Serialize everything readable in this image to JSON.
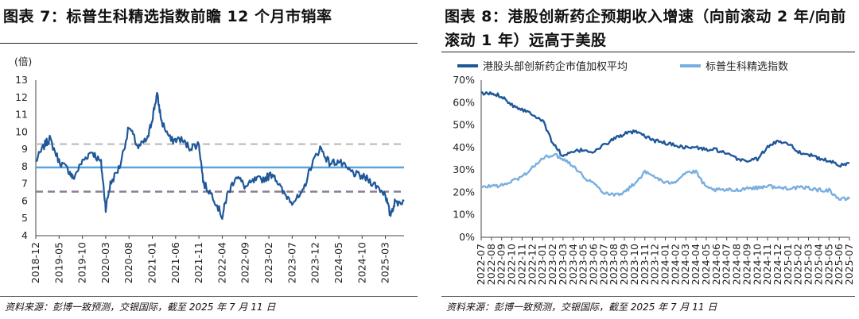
{
  "left": {
    "title": "图表 7：标普生科精选指数前瞻 12 个月市销率",
    "source": "资料来源：彭博一致预测，交银国际，截至 2025 年 7 月 11 日",
    "chart_data": {
      "type": "line",
      "ylabel": "(倍)",
      "ylim": [
        4,
        13
      ],
      "yticks": [
        "4",
        "5",
        "6",
        "7",
        "8",
        "9",
        "10",
        "11",
        "12",
        "13"
      ],
      "x_labels": [
        "2018-12",
        "2019-05",
        "2019-10",
        "2020-03",
        "2020-08",
        "2021-01",
        "2021-06",
        "2021-11",
        "2022-04",
        "2022-09",
        "2023-02",
        "2023-07",
        "2023-12",
        "2024-05",
        "2024-10",
        "2025-03"
      ],
      "series": [
        {
          "color": "#1f5799",
          "x": [
            "2018-12",
            "2019-02",
            "2019-03",
            "2019-05",
            "2019-07",
            "2019-08",
            "2019-10",
            "2019-12",
            "2020-02",
            "2020-03",
            "2020-04",
            "2020-06",
            "2020-08",
            "2020-10",
            "2020-12",
            "2021-01",
            "2021-02",
            "2021-03",
            "2021-05",
            "2021-07",
            "2021-09",
            "2021-11",
            "2021-12",
            "2022-02",
            "2022-04",
            "2022-05",
            "2022-07",
            "2022-09",
            "2022-11",
            "2023-01",
            "2023-03",
            "2023-05",
            "2023-07",
            "2023-09",
            "2023-11",
            "2024-01",
            "2024-03",
            "2024-05",
            "2024-07",
            "2024-09",
            "2024-11",
            "2025-01",
            "2025-03",
            "2025-04",
            "2025-05",
            "2025-07"
          ],
          "values": [
            8.3,
            9.3,
            9.6,
            8.3,
            7.8,
            7.3,
            8.3,
            8.9,
            8.2,
            5.6,
            7.0,
            8.0,
            10.3,
            9.1,
            9.6,
            10.8,
            12.2,
            10.6,
            9.5,
            9.6,
            9.1,
            9.3,
            7.0,
            6.3,
            5.1,
            6.3,
            7.5,
            6.8,
            7.2,
            7.3,
            7.6,
            6.5,
            6.0,
            6.3,
            8.0,
            9.1,
            8.2,
            8.3,
            7.8,
            7.5,
            7.3,
            6.9,
            6.4,
            5.2,
            5.9,
            6.0
          ]
        }
      ],
      "reference_lines": [
        {
          "name": "mean",
          "value": 7.95,
          "color": "#5ba3db",
          "style": "solid"
        },
        {
          "name": "+1sd",
          "value": 9.3,
          "color": "#c4c4c4",
          "style": "dashed"
        },
        {
          "name": "-1sd",
          "value": 6.55,
          "color": "#8c7b93",
          "style": "dashed"
        }
      ]
    }
  },
  "right": {
    "title": "图表 8：港股创新药企预期收入增速（向前滚动 2 年/向前滚动 1 年）远高于美股",
    "source": "资料来源：彭博一致预测，交银国际，截至 2025 年 7 月 11 日",
    "chart_data": {
      "type": "line",
      "ylim": [
        0,
        70
      ],
      "yticks": [
        "0%",
        "10%",
        "20%",
        "30%",
        "40%",
        "50%",
        "60%",
        "70%"
      ],
      "x_labels": [
        "2022-07",
        "2022-08",
        "2022-09",
        "2022-10",
        "2022-11",
        "2022-12",
        "2023-01",
        "2023-02",
        "2023-03",
        "2023-04",
        "2023-05",
        "2023-06",
        "2023-07",
        "2023-08",
        "2023-09",
        "2023-10",
        "2023-11",
        "2023-12",
        "2024-01",
        "2024-02",
        "2024-03",
        "2024-04",
        "2024-05",
        "2024-06",
        "2024-07",
        "2024-08",
        "2024-09",
        "2024-10",
        "2024-11",
        "2024-12",
        "2025-01",
        "2025-02",
        "2025-03",
        "2025-04",
        "2025-05",
        "2025-06",
        "2025-07"
      ],
      "legend_position": "top",
      "series": [
        {
          "name": "港股头部创新药企市值加权平均",
          "color": "#1f5799",
          "x": [
            "2022-07",
            "2022-08",
            "2022-09",
            "2022-10",
            "2022-11",
            "2022-12",
            "2023-01",
            "2023-02",
            "2023-03",
            "2023-04",
            "2023-05",
            "2023-06",
            "2023-07",
            "2023-08",
            "2023-09",
            "2023-10",
            "2023-11",
            "2023-12",
            "2024-01",
            "2024-02",
            "2024-03",
            "2024-04",
            "2024-05",
            "2024-06",
            "2024-07",
            "2024-08",
            "2024-09",
            "2024-10",
            "2024-11",
            "2024-12",
            "2025-01",
            "2025-02",
            "2025-03",
            "2025-04",
            "2025-05",
            "2025-06",
            "2025-07"
          ],
          "values": [
            64,
            64,
            63,
            59,
            57,
            55,
            52,
            42,
            36,
            38,
            39,
            38,
            41,
            44,
            46,
            47,
            45,
            43,
            42,
            41,
            40,
            40,
            39,
            39,
            37,
            35,
            34,
            35,
            40,
            43,
            42,
            38,
            37,
            35,
            34,
            32,
            33
          ]
        },
        {
          "name": "标普生科精选指数",
          "color": "#79aee0",
          "x": [
            "2022-07",
            "2022-08",
            "2022-09",
            "2022-10",
            "2022-11",
            "2022-12",
            "2023-01",
            "2023-02",
            "2023-03",
            "2023-04",
            "2023-05",
            "2023-06",
            "2023-07",
            "2023-08",
            "2023-09",
            "2023-10",
            "2023-11",
            "2023-12",
            "2024-01",
            "2024-02",
            "2024-03",
            "2024-04",
            "2024-05",
            "2024-06",
            "2024-07",
            "2024-08",
            "2024-09",
            "2024-10",
            "2024-11",
            "2024-12",
            "2025-01",
            "2025-02",
            "2025-03",
            "2025-04",
            "2025-05",
            "2025-06",
            "2025-07"
          ],
          "values": [
            22,
            23,
            23,
            25,
            27,
            31,
            35,
            37,
            35,
            32,
            27,
            24,
            20,
            19,
            20,
            24,
            29,
            27,
            24,
            25,
            29,
            29,
            22,
            21,
            21,
            21,
            22,
            22,
            23,
            22,
            22,
            22,
            22,
            21,
            21,
            17,
            17
          ]
        }
      ]
    }
  }
}
